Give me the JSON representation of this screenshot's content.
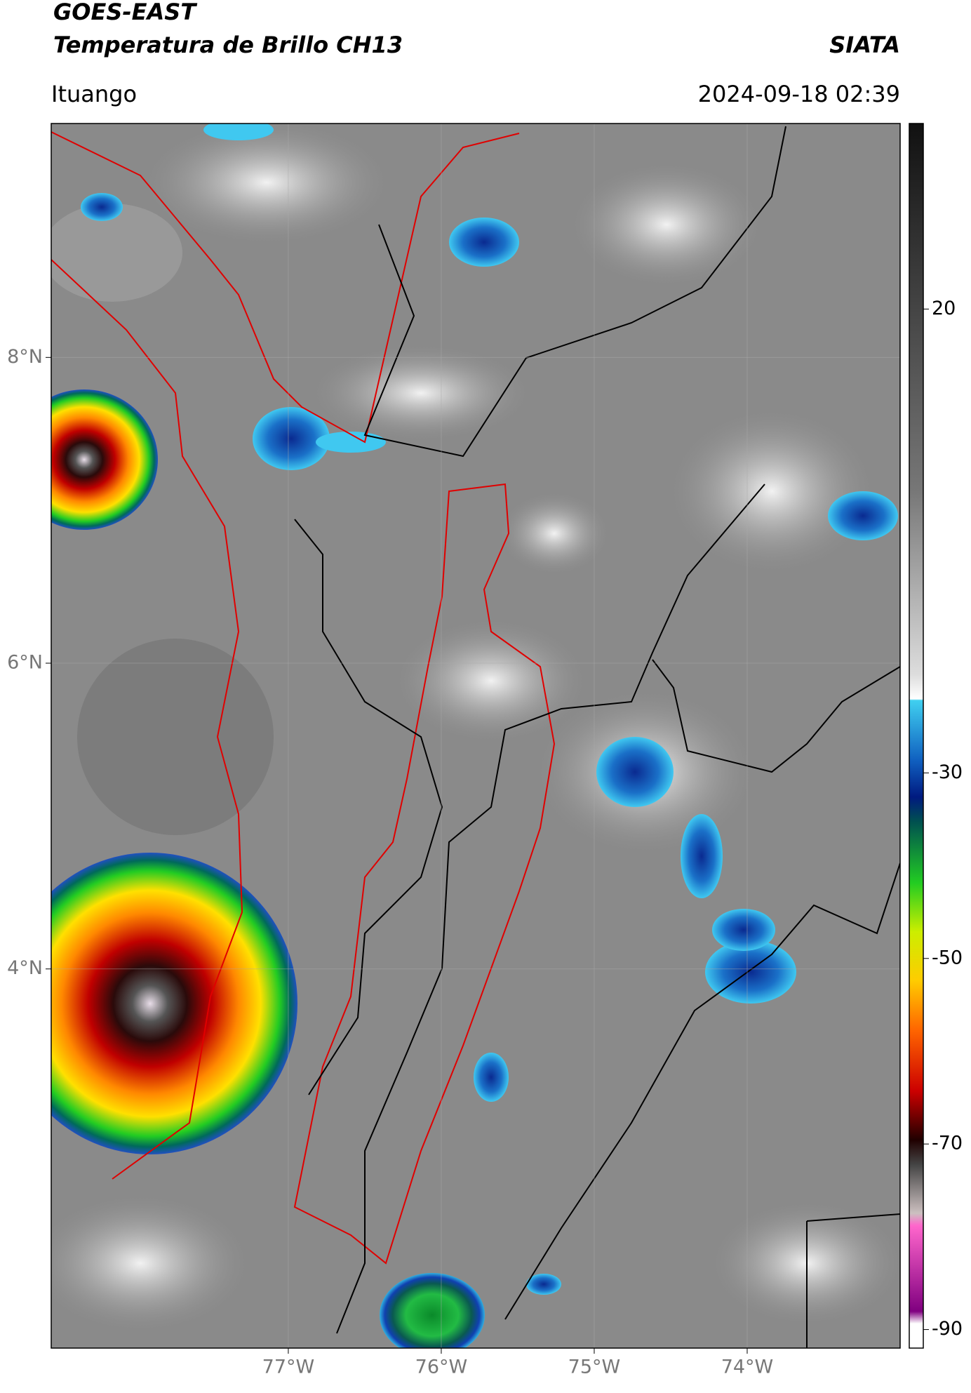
{
  "header": {
    "title": "GOES-EAST",
    "subtitle": "Temperatura de Brillo CH13",
    "source": "SIATA",
    "location": "Ituango",
    "timestamp": "2024-09-18 02:39"
  },
  "map": {
    "lon_range": [
      -78.55,
      -73
    ],
    "lat_range": [
      1.52,
      9.53
    ],
    "lat_ticks": [
      {
        "value": 8,
        "label": "8°N"
      },
      {
        "value": 6,
        "label": "6°N"
      },
      {
        "value": 4,
        "label": "4°N"
      }
    ],
    "lon_ticks": [
      {
        "value": -77,
        "label": "77°W"
      },
      {
        "value": -76,
        "label": "76°W"
      },
      {
        "value": -75,
        "label": "75°W"
      },
      {
        "value": -74,
        "label": "74°W"
      }
    ],
    "grid": true
  },
  "colorbar": {
    "range": [
      -92,
      40
    ],
    "ticks": [
      20,
      -30,
      -50,
      -70,
      -90
    ]
  }
}
